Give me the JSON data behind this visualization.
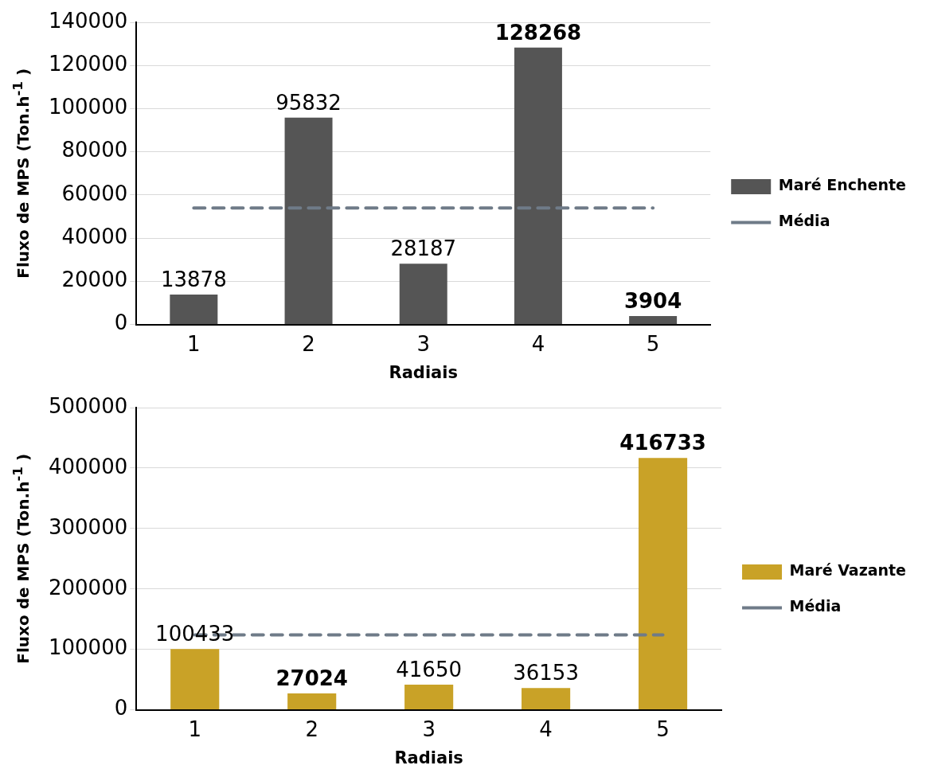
{
  "chart_data": [
    {
      "type": "bar",
      "categories": [
        "1",
        "2",
        "3",
        "4",
        "5"
      ],
      "xlabel": "Radiais",
      "ylabel": "Fluxo de MPS (Ton.h$^{-1}$ )",
      "ylim": [
        0,
        140000
      ],
      "yticks": [
        0,
        20000,
        40000,
        60000,
        80000,
        100000,
        120000,
        140000
      ],
      "grid": "y",
      "legend": "right",
      "series": [
        {
          "name": "Maré Enchente",
          "color": "#555555",
          "values": [
            13878,
            95832,
            28187,
            128268,
            3904
          ],
          "value_labels": [
            "13878",
            "95832",
            "28187",
            "128268",
            "3904"
          ]
        },
        {
          "name": "Média",
          "type": "line",
          "color": "#6f7b88",
          "line_style": "dashed",
          "values": [
            54000,
            54000,
            54000,
            54000,
            54000
          ]
        }
      ]
    },
    {
      "type": "bar",
      "categories": [
        "1",
        "2",
        "3",
        "4",
        "5"
      ],
      "xlabel": "Radiais",
      "ylabel": "Fluxo de MPS (Ton.h$^{-1}$ )",
      "ylim": [
        0,
        500000
      ],
      "yticks": [
        0,
        100000,
        200000,
        300000,
        400000,
        500000
      ],
      "grid": "y",
      "legend": "right",
      "series": [
        {
          "name": "Maré Vazante",
          "color": "#c9a227",
          "values": [
            100433,
            27024,
            41650,
            36153,
            416733
          ],
          "value_labels": [
            "100433",
            "27024",
            "41650",
            "36153",
            "416733"
          ]
        },
        {
          "name": "Média",
          "type": "line",
          "color": "#6f7b88",
          "line_style": "dashed",
          "values": [
            124000,
            124000,
            124000,
            124000,
            124000
          ]
        }
      ]
    }
  ]
}
